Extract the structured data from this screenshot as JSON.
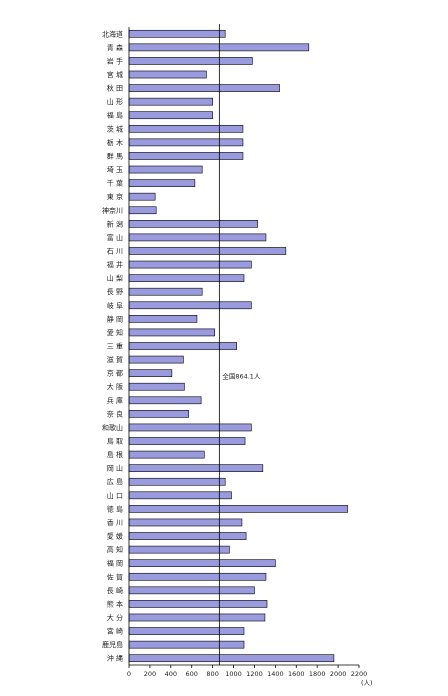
{
  "chart_data": {
    "type": "bar",
    "orientation": "horizontal",
    "categories": [
      "北海道",
      "青 森",
      "岩 手",
      "宮 城",
      "秋 田",
      "山 形",
      "福 島",
      "茨 城",
      "栃 木",
      "群 馬",
      "埼 玉",
      "千 葉",
      "東 京",
      "神奈川",
      "新 潟",
      "富 山",
      "石 川",
      "福 井",
      "山 梨",
      "長 野",
      "岐 阜",
      "静 岡",
      "愛 知",
      "三 重",
      "滋 賀",
      "京 都",
      "大 阪",
      "兵 庫",
      "奈 良",
      "和歌山",
      "鳥 取",
      "島 根",
      "岡 山",
      "広 島",
      "山 口",
      "徳 島",
      "香 川",
      "愛 媛",
      "高 知",
      "福 岡",
      "佐 賀",
      "長 崎",
      "熊 本",
      "大 分",
      "宮 崎",
      "鹿児島",
      "沖 縄"
    ],
    "values": [
      920,
      1720,
      1180,
      740,
      1440,
      800,
      800,
      1090,
      1090,
      1090,
      700,
      630,
      250,
      260,
      1230,
      1310,
      1500,
      1170,
      1100,
      700,
      1170,
      650,
      820,
      1030,
      520,
      410,
      530,
      690,
      570,
      1170,
      1110,
      720,
      1280,
      920,
      980,
      2090,
      1080,
      1120,
      960,
      1400,
      1310,
      1200,
      1320,
      1300,
      1100,
      1100,
      1960
    ],
    "xlim": [
      0,
      2200
    ],
    "xticks": [
      0,
      200,
      400,
      600,
      800,
      1000,
      1200,
      1400,
      1600,
      1800,
      2000,
      2200
    ],
    "x_unit": "(人)",
    "reference_value": 864.1,
    "reference_label": "全国864.1人",
    "bar_color": "#9a9ade",
    "bar_edge": "#000000",
    "grid": false
  }
}
